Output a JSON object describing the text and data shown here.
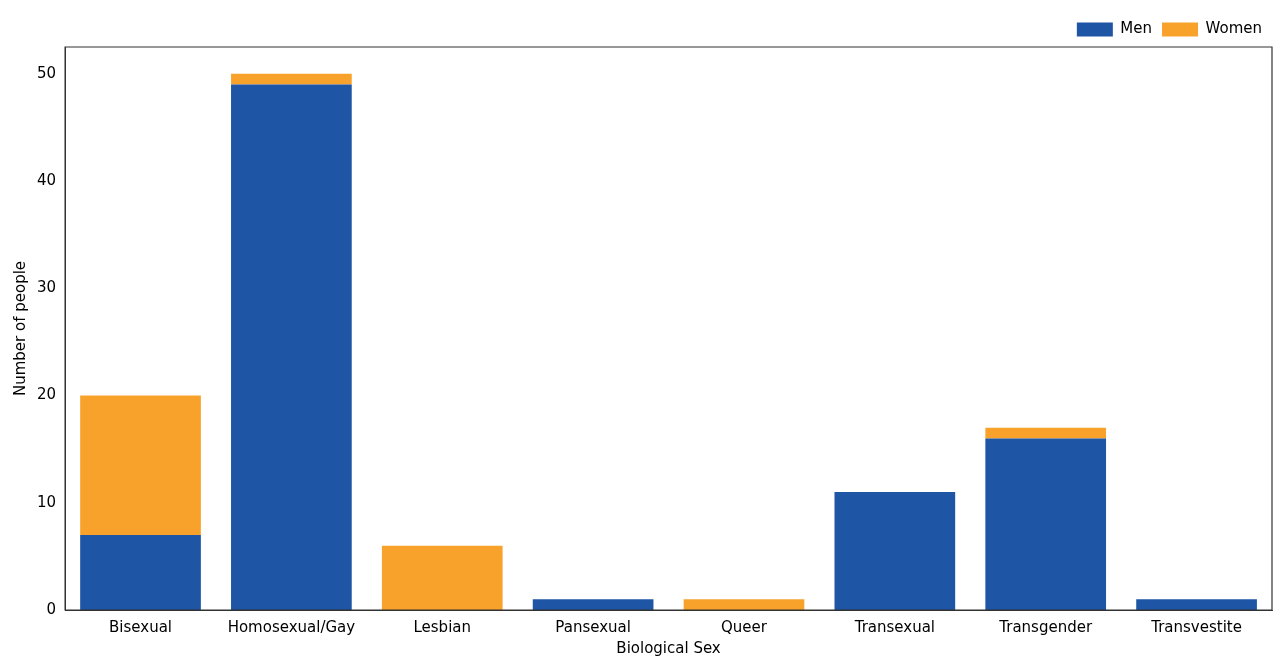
{
  "chart_data": {
    "type": "bar",
    "xlabel": "Biological Sex",
    "ylabel": "Number of people",
    "categories": [
      "Bisexual",
      "Homosexual/Gay",
      "Lesbian",
      "Pansexual",
      "Queer",
      "Transexual",
      "Transgender",
      "Transvestite"
    ],
    "series": [
      {
        "name": "Men",
        "color": "#1f55a5",
        "values": [
          7,
          49,
          0,
          1,
          0,
          11,
          16,
          1
        ]
      },
      {
        "name": "Women",
        "color": "#f8a22b",
        "values": [
          13,
          1,
          6,
          0,
          1,
          0,
          1,
          0
        ]
      }
    ],
    "stacked": true,
    "ylim": [
      0,
      52.5
    ],
    "yticks": [
      0,
      10,
      20,
      30,
      40,
      50
    ],
    "grid": false,
    "legend": "top right"
  }
}
